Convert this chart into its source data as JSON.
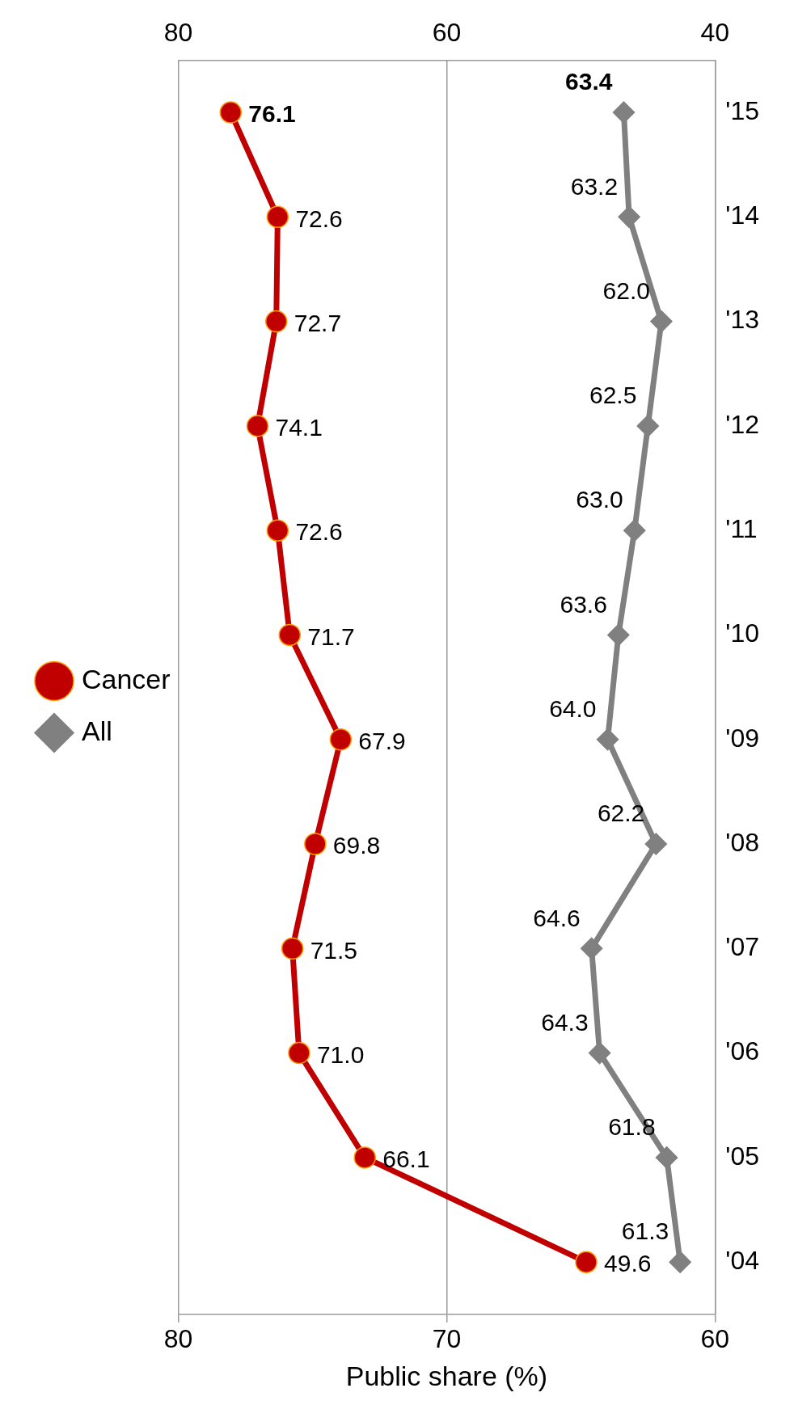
{
  "chart_data": {
    "type": "line",
    "orientation": "horizontal",
    "categories": [
      "'15",
      "'14",
      "'13",
      "'12",
      "'11",
      "'10",
      "'09",
      "'08",
      "'07",
      "'06",
      "'05",
      "'04"
    ],
    "series": [
      {
        "name": "All",
        "color": "#808080",
        "marker": "diamond",
        "values": [
          63.4,
          63.2,
          62.0,
          62.5,
          63.0,
          63.6,
          64.0,
          62.2,
          64.6,
          64.3,
          61.8,
          61.3
        ],
        "value_labels": [
          "63.4",
          "63.2",
          "62.0",
          "62.5",
          "63.0",
          "63.6",
          "64.0",
          "62.2",
          "64.6",
          "64.3",
          "61.8",
          "61.3"
        ]
      },
      {
        "name": "Cancer",
        "color": "#c00000",
        "marker": "circle",
        "axis": "x2",
        "values": [
          76.1,
          72.6,
          72.7,
          74.1,
          72.6,
          71.7,
          67.9,
          69.8,
          71.5,
          71.0,
          66.1,
          49.6
        ],
        "value_labels": [
          "76.1",
          "72.6",
          "72.7",
          "74.1",
          "72.6",
          "71.7",
          "67.9",
          "69.8",
          "71.5",
          "71.0",
          "66.1",
          "49.6"
        ]
      }
    ],
    "xlabel": "Public share (%)",
    "xlim": [
      80,
      60
    ],
    "xticks": [
      80,
      70,
      60
    ],
    "x2lim": [
      80,
      40
    ],
    "x2ticks": [
      80,
      60,
      40
    ],
    "grid": "x",
    "legend": "left"
  }
}
